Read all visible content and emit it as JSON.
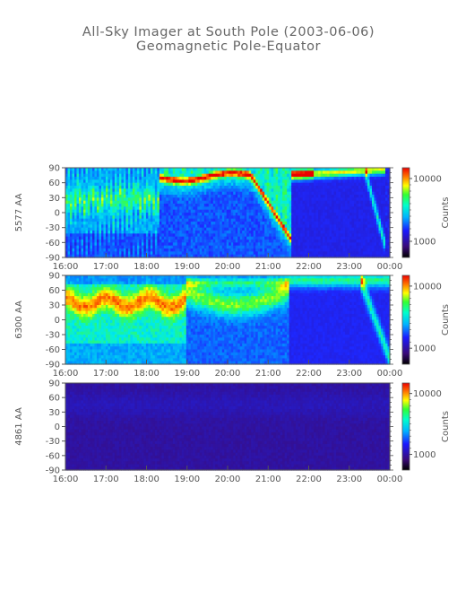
{
  "header": {
    "title": "All-Sky Imager at South Pole (2003-06-06)",
    "subtitle": "Geomagnetic Pole-Equator"
  },
  "chart_data": [
    {
      "type": "heatmap",
      "ylabel": "5577 AA",
      "x_ticks": [
        "16:00",
        "17:00",
        "18:00",
        "19:00",
        "20:00",
        "21:00",
        "22:00",
        "23:00",
        "00:00"
      ],
      "xlim_hours": [
        16,
        24
      ],
      "y_ticks": [
        "90",
        "60",
        "30",
        "0",
        "-30",
        "-60",
        "-90"
      ],
      "ylim": [
        -90,
        90
      ],
      "colorbar": {
        "label": "Counts",
        "ticks": [
          "10000",
          "1000"
        ],
        "scale": "log"
      }
    },
    {
      "type": "heatmap",
      "ylabel": "6300 AA",
      "x_ticks": [
        "16:00",
        "17:00",
        "18:00",
        "19:00",
        "20:00",
        "21:00",
        "22:00",
        "23:00",
        "00:00"
      ],
      "xlim_hours": [
        16,
        24
      ],
      "y_ticks": [
        "90",
        "60",
        "30",
        "0",
        "-30",
        "-60",
        "-90"
      ],
      "ylim": [
        -90,
        90
      ],
      "colorbar": {
        "label": "Counts",
        "ticks": [
          "10000",
          "1000"
        ],
        "scale": "log"
      }
    },
    {
      "type": "heatmap",
      "ylabel": "4861 AA",
      "x_ticks": [
        "16:00",
        "17:00",
        "18:00",
        "19:00",
        "20:00",
        "21:00",
        "22:00",
        "23:00",
        "00:00"
      ],
      "xlim_hours": [
        16,
        24
      ],
      "y_ticks": [
        "90",
        "60",
        "30",
        "0",
        "-30",
        "-60",
        "-90"
      ],
      "ylim": [
        -90,
        90
      ],
      "colorbar": {
        "label": "Counts",
        "ticks": [
          "10000",
          "1000"
        ],
        "scale": "log"
      }
    }
  ]
}
